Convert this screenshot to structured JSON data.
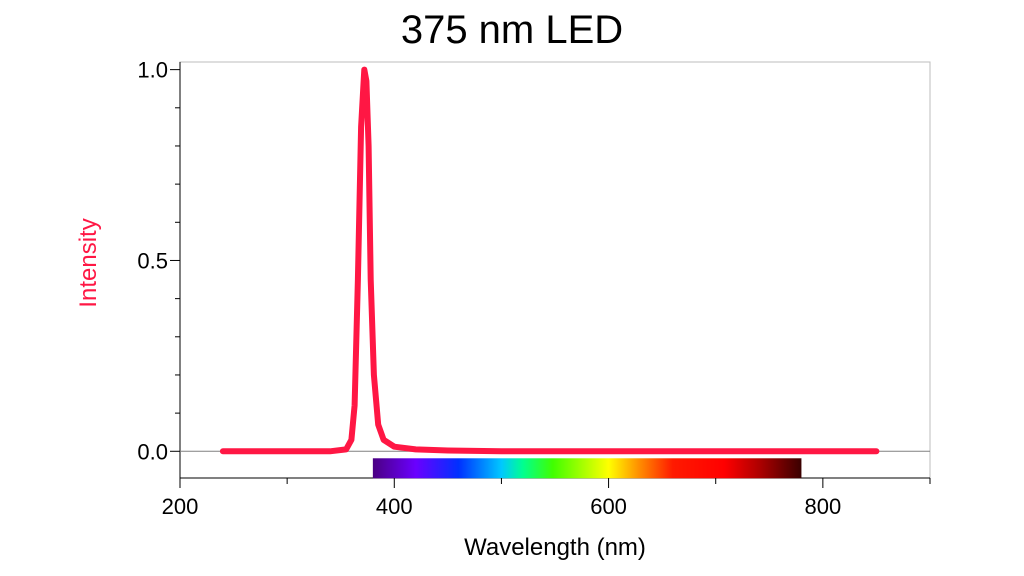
{
  "chart_data": {
    "type": "line",
    "title": "375 nm LED",
    "xlabel": "Wavelength (nm)",
    "ylabel": "Intensity",
    "xlim": [
      200,
      900
    ],
    "ylim": [
      -0.07,
      1.02
    ],
    "x_ticks": [
      {
        "value": 200,
        "label": "200"
      },
      {
        "value": 400,
        "label": "400"
      },
      {
        "value": 600,
        "label": "600"
      },
      {
        "value": 800,
        "label": "800"
      }
    ],
    "y_ticks": [
      {
        "value": 0.0,
        "label": "0.0"
      },
      {
        "value": 0.5,
        "label": "0.5"
      },
      {
        "value": 1.0,
        "label": "1.0"
      }
    ],
    "grid": false,
    "line_color": "#ff1744",
    "ylabel_color": "#ff1744",
    "spectrum_bar": {
      "x_start": 380,
      "x_end": 780
    },
    "series": [
      {
        "x": [
          240,
          300,
          340,
          355,
          360,
          363,
          366,
          369,
          372,
          374,
          376,
          378,
          381,
          385,
          390,
          400,
          420,
          450,
          500,
          600,
          700,
          800,
          850
        ],
        "values": [
          0.0,
          0.0,
          0.0,
          0.005,
          0.03,
          0.12,
          0.45,
          0.85,
          1.0,
          0.97,
          0.8,
          0.45,
          0.2,
          0.07,
          0.03,
          0.012,
          0.005,
          0.002,
          0.0,
          0.0,
          0.0,
          0.0,
          0.0
        ]
      }
    ]
  }
}
